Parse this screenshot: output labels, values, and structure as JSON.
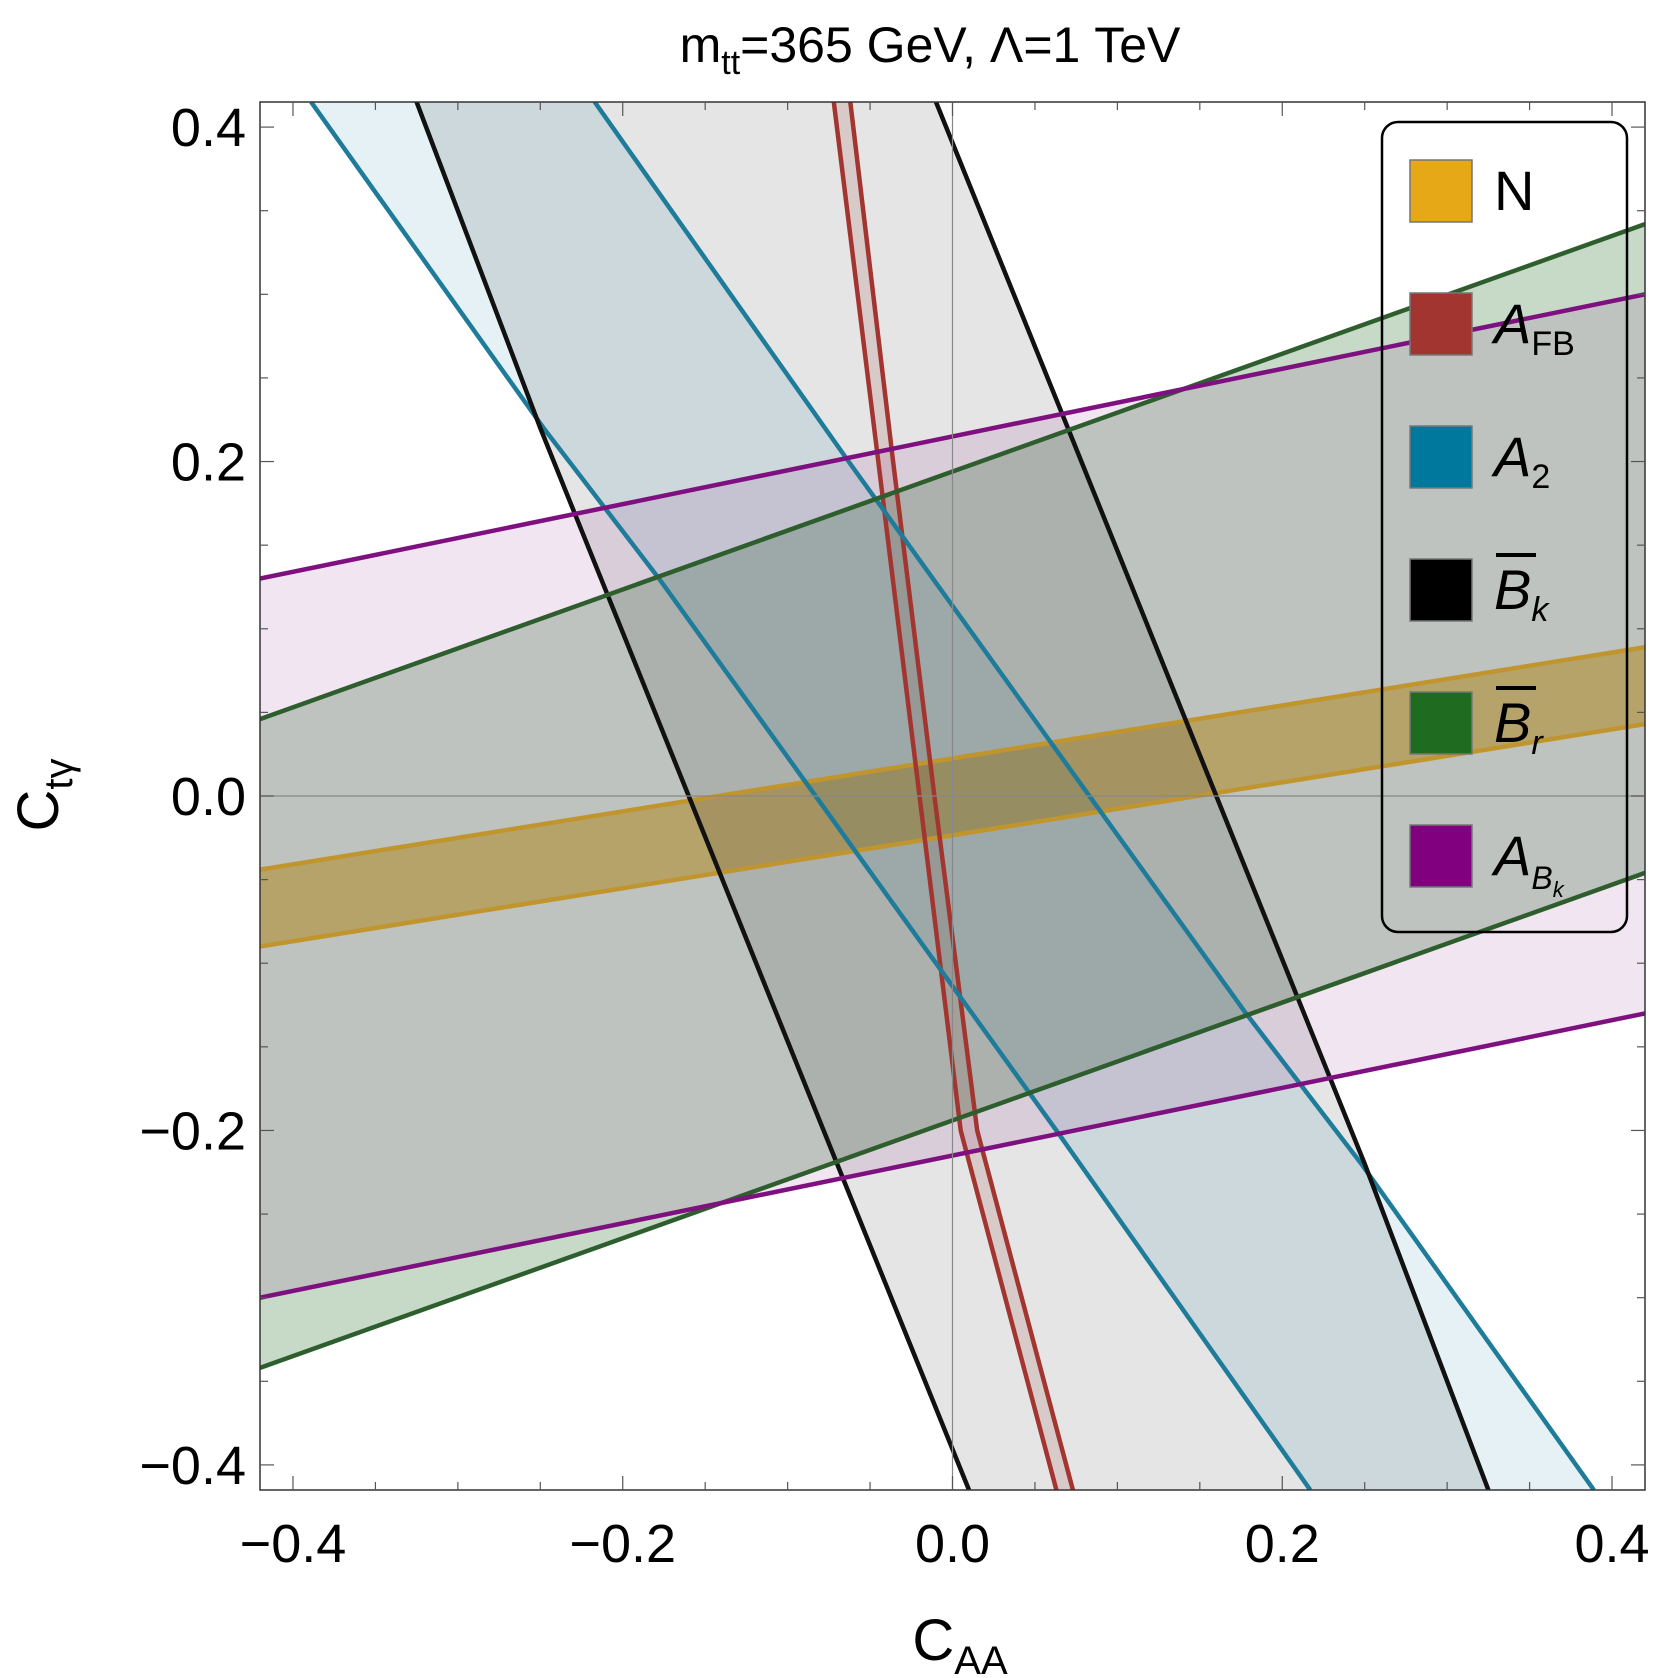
{
  "chart_data": {
    "type": "area",
    "title": {
      "base": "m",
      "sub": "tt",
      "rest": "=365 GeV, Λ=1 TeV"
    },
    "xlabel": {
      "base": "C",
      "sub": "AA"
    },
    "ylabel": {
      "base": "C",
      "sub": "tγ"
    },
    "xlim": [
      -0.42,
      0.42
    ],
    "ylim": [
      -0.415,
      0.415
    ],
    "xticks": [
      -0.4,
      -0.2,
      0.0,
      0.2,
      0.4
    ],
    "yticks": [
      -0.4,
      -0.2,
      0.0,
      0.2,
      0.4
    ],
    "xtick_labels": [
      "−0.4",
      "−0.2",
      "0.0",
      "0.2",
      "0.4"
    ],
    "ytick_labels": [
      "−0.4",
      "−0.2",
      "0.0",
      "0.2",
      "0.4"
    ],
    "minor_step": 0.05,
    "grid": false,
    "legend_position": "top-right",
    "series": [
      {
        "name": "N",
        "label_html": "N",
        "color": "#E6A817",
        "line_color": "#C0952E",
        "fill_opacity": 0.55,
        "boundaries": [
          [
            [
              -0.42,
              -0.044
            ],
            [
              0.42,
              0.089
            ]
          ],
          [
            [
              -0.42,
              -0.09
            ],
            [
              0.42,
              0.043
            ]
          ]
        ]
      },
      {
        "name": "A_FB",
        "label_html": "<tspan font-style='italic'>A</tspan><tspan dy='12' font-size='34'>FB</tspan>",
        "color": "#A33530",
        "line_color": "#A33530",
        "fill_opacity": 0.15,
        "boundaries": [
          [
            [
              -0.072,
              0.415
            ],
            [
              -0.045,
              0.2
            ],
            [
              -0.02,
              0.0
            ],
            [
              0.005,
              -0.2
            ],
            [
              0.063,
              -0.415
            ]
          ],
          [
            [
              -0.062,
              0.415
            ],
            [
              -0.036,
              0.2
            ],
            [
              -0.011,
              0.0
            ],
            [
              0.015,
              -0.2
            ],
            [
              0.073,
              -0.415
            ]
          ]
        ]
      },
      {
        "name": "A_2",
        "label_html": "<tspan font-style='italic'>A</tspan><tspan dy='12' font-size='34'>2</tspan>",
        "color": "#00789E",
        "line_color": "#1E7C9A",
        "fill_opacity": 0.1,
        "boundaries": [
          [
            [
              -0.389,
              0.415
            ],
            [
              -0.248,
              0.22
            ],
            [
              -0.178,
              0.13
            ],
            [
              -0.083,
              0.0
            ],
            [
              0.063,
              -0.2
            ],
            [
              0.217,
              -0.415
            ]
          ],
          [
            [
              -0.217,
              0.415
            ],
            [
              -0.063,
              0.2
            ],
            [
              0.083,
              0.0
            ],
            [
              0.178,
              -0.13
            ],
            [
              0.248,
              -0.22
            ],
            [
              0.389,
              -0.415
            ]
          ]
        ]
      },
      {
        "name": "B̄_k",
        "label_html": "<tspan font-style='italic'>B</tspan><tspan dy='12' font-size='34' font-style='italic'>k</tspan>",
        "color": "#000000",
        "line_color": "#111111",
        "fill_opacity": 0.1,
        "boundaries": [
          [
            [
              -0.325,
              0.415
            ],
            [
              -0.25,
              0.22
            ],
            [
              -0.16,
              0.0
            ],
            [
              -0.07,
              -0.22
            ],
            [
              0.01,
              -0.415
            ]
          ],
          [
            [
              -0.01,
              0.415
            ],
            [
              0.07,
              0.22
            ],
            [
              0.16,
              0.0
            ],
            [
              0.25,
              -0.22
            ],
            [
              0.325,
              -0.415
            ]
          ]
        ]
      },
      {
        "name": "B̄_r",
        "label_html": "<tspan font-style='italic'>B</tspan><tspan dy='12' font-size='34' font-style='italic'>r</tspan>",
        "color": "#1F6B1F",
        "line_color": "#2E5E2E",
        "fill_opacity": 0.25,
        "boundaries": [
          [
            [
              -0.42,
              0.046
            ],
            [
              0.42,
              0.342
            ]
          ],
          [
            [
              -0.42,
              -0.342
            ],
            [
              0.42,
              -0.046
            ]
          ]
        ]
      },
      {
        "name": "A_B_k",
        "label_html": "<tspan font-style='italic'>A</tspan><tspan dy='14' font-size='32' font-style='italic'>B</tspan><tspan dy='8' font-size='22' font-style='italic'>k</tspan>",
        "color": "#800080",
        "line_color": "#7F1080",
        "fill_opacity": 0.1,
        "boundaries": [
          [
            [
              -0.42,
              0.13
            ],
            [
              0.42,
              0.3
            ]
          ],
          [
            [
              -0.42,
              -0.3
            ],
            [
              0.42,
              -0.13
            ]
          ]
        ]
      }
    ]
  }
}
